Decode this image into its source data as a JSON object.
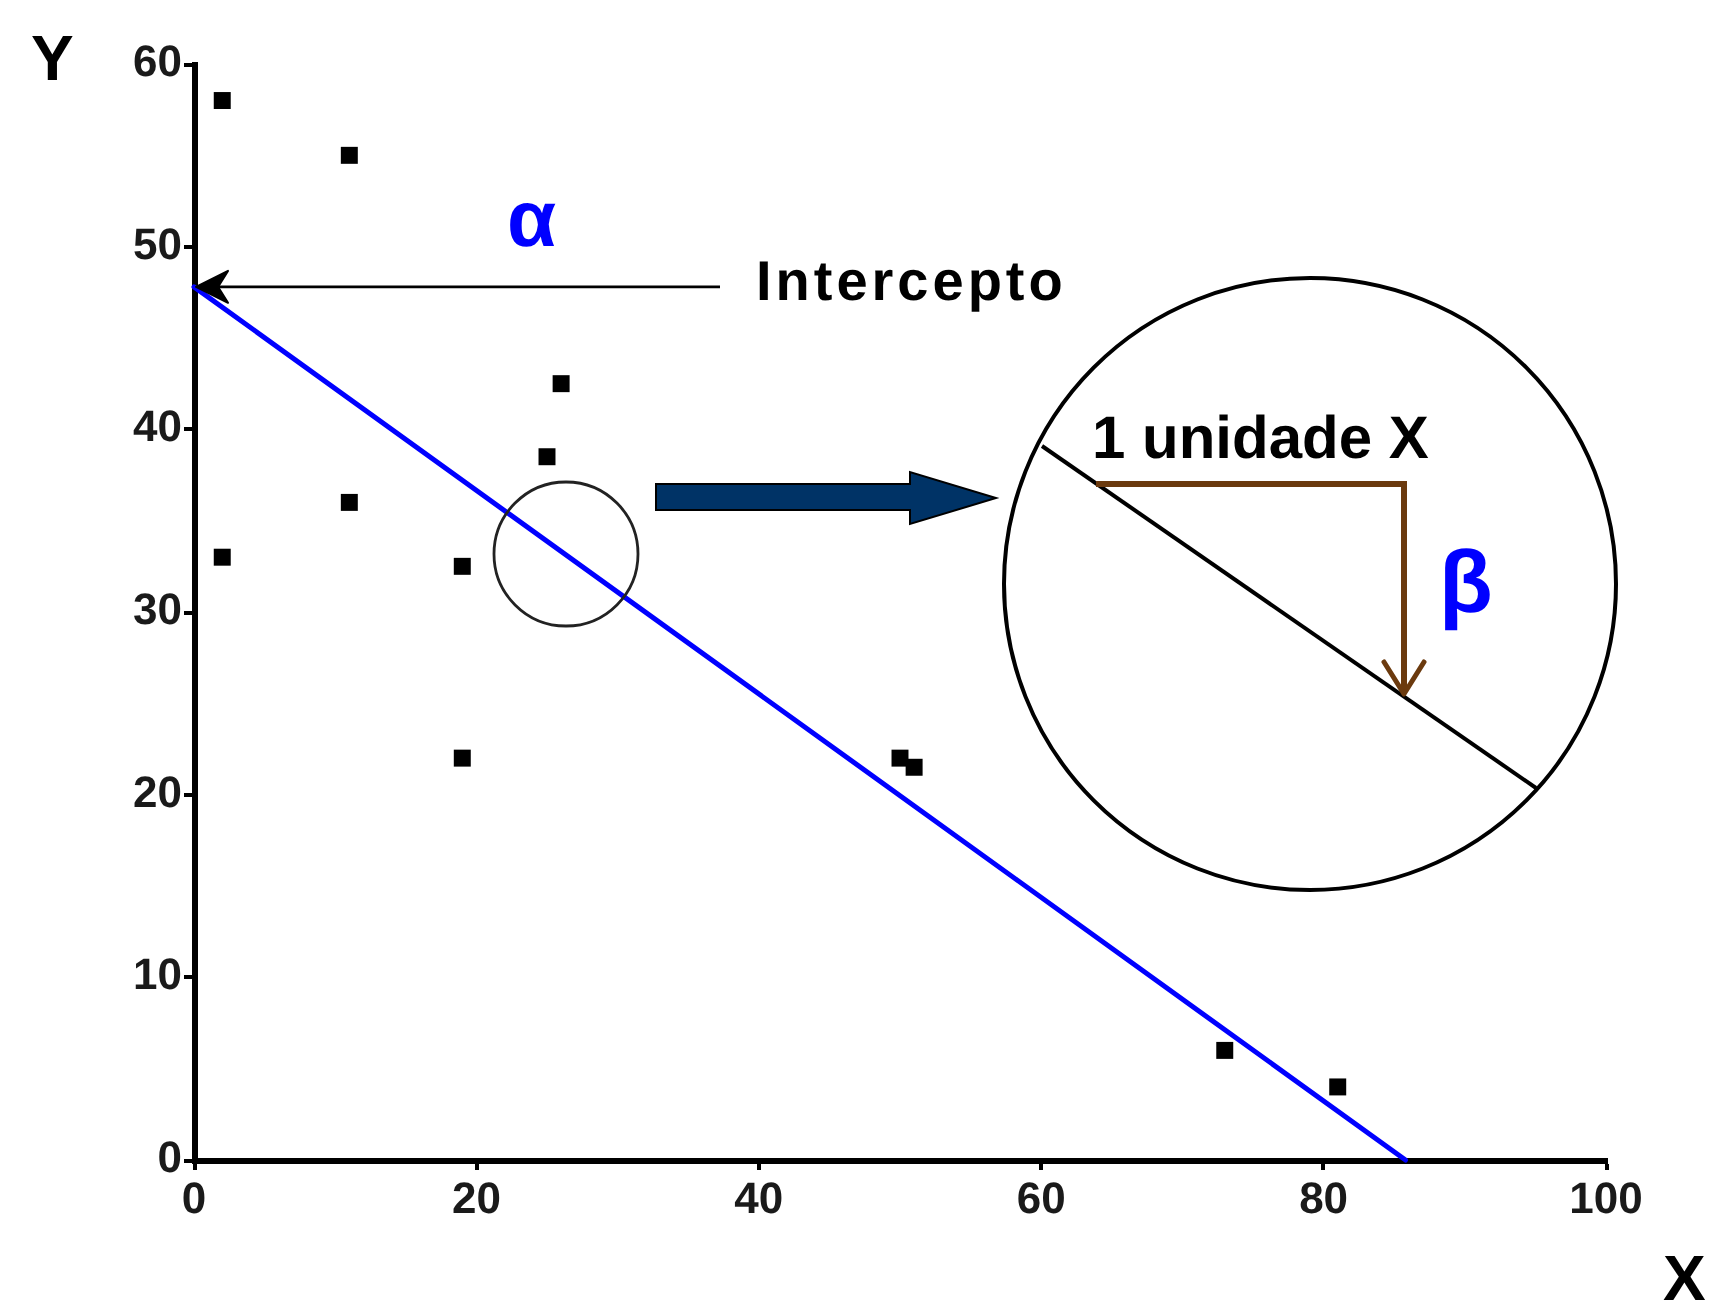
{
  "chart_data": {
    "type": "scatter",
    "xlabel": "X",
    "ylabel": "Y",
    "annotations": [
      {
        "text": "Intercepto",
        "x": 0,
        "y": 47.8
      },
      "α",
      "1 unidade X",
      "β"
    ],
    "xlim": [
      0,
      100
    ],
    "ylim": [
      0,
      60
    ],
    "xticks": [
      0,
      20,
      40,
      60,
      80,
      100
    ],
    "yticks": [
      0,
      10,
      20,
      30,
      40,
      50,
      60
    ],
    "grid": false,
    "legend": false,
    "marker": "square",
    "series": [
      {
        "color": "#000000",
        "x": [
          2,
          11,
          26,
          25,
          11,
          2,
          19,
          19,
          50,
          51,
          73,
          81
        ],
        "values": [
          58,
          55,
          42.5,
          38.5,
          36,
          33,
          32.5,
          22,
          22,
          21.5,
          6,
          4
        ]
      },
      {
        "type": "line",
        "color": "#0000ff",
        "marker": "none",
        "x": [
          0,
          85.8
        ],
        "values": [
          47.8,
          0
        ]
      }
    ]
  }
}
